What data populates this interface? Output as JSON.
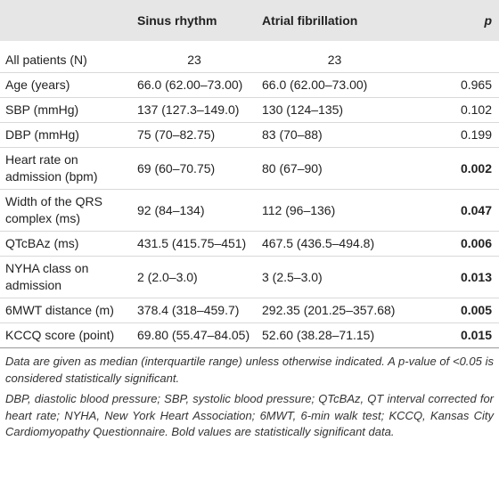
{
  "table": {
    "header": [
      "",
      "Sinus rhythm",
      "Atrial fibrillation",
      "p"
    ],
    "rows": [
      [
        "All patients (N)",
        "23",
        "23",
        ""
      ],
      [
        "Age (years)",
        "66.0 (62.00–73.00)",
        "66.0 (62.00–73.00)",
        "0.965"
      ],
      [
        "SBP (mmHg)",
        "137 (127.3–149.0)",
        "130 (124–135)",
        "0.102"
      ],
      [
        "DBP (mmHg)",
        "75 (70–82.75)",
        "83 (70–88)",
        "0.199"
      ],
      [
        "Heart rate on admission (bpm)",
        "69 (60–70.75)",
        "80 (67–90)",
        "0.002"
      ],
      [
        "Width of the QRS complex (ms)",
        "92 (84–134)",
        "112 (96–136)",
        "0.047"
      ],
      [
        "QTcBAz (ms)",
        "431.5 (415.75–451)",
        "467.5 (436.5–494.8)",
        "0.006"
      ],
      [
        "NYHA class on admission",
        "2 (2.0–3.0)",
        "3 (2.5–3.0)",
        "0.013"
      ],
      [
        "6MWT distance (m)",
        "378.4 (318–459.7)",
        "292.35 (201.25–357.68)",
        "0.005"
      ],
      [
        "KCCQ score (point)",
        "69.80 (55.47–84.05)",
        "52.60 (38.28–71.15)",
        "0.015"
      ]
    ],
    "bold_p": [
      false,
      false,
      false,
      false,
      true,
      true,
      true,
      true,
      true,
      true
    ]
  },
  "notes": [
    "Data are given as median (interquartile range) unless otherwise indicated. A p-value of <0.05 is considered statistically significant.",
    "DBP, diastolic blood pressure; SBP, systolic blood pressure; QTcBAz, QT interval corrected for heart rate; NYHA, New York Heart Association; 6MWT, 6-min walk test; KCCQ, Kansas City Cardiomyopathy Questionnaire. Bold values are statistically significant data."
  ]
}
